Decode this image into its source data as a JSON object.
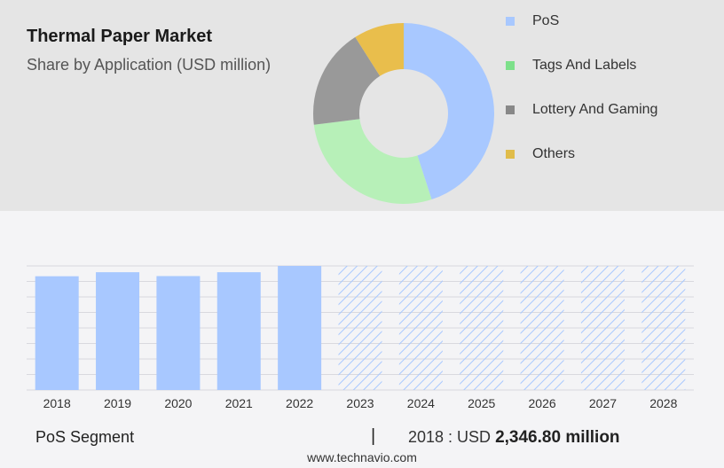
{
  "header": {
    "title": "Thermal Paper Market",
    "subtitle": "Share by Application (USD million)"
  },
  "colors": {
    "pos": "#a8c8ff",
    "tags": "#b7f0b8",
    "lottery": "#999999",
    "others": "#e9be4c",
    "forecast_hatch": "#a8c8ff"
  },
  "legend_colors": {
    "pos": "#a8c8ff",
    "tags": "#7de08a",
    "lottery": "#888888",
    "others": "#e0bc4a"
  },
  "chart_data": [
    {
      "type": "pie",
      "variant": "donut",
      "legend_position": "right",
      "slices": [
        {
          "name": "PoS",
          "value": 45
        },
        {
          "name": "Tags And Labels",
          "value": 28
        },
        {
          "name": "Lottery And Gaming",
          "value": 18
        },
        {
          "name": "Others",
          "value": 9
        }
      ]
    },
    {
      "type": "bar",
      "categories": [
        "2018",
        "2019",
        "2020",
        "2021",
        "2022",
        "2023",
        "2024",
        "2025",
        "2026",
        "2027",
        "2028"
      ],
      "values": [
        2346.8,
        2430,
        2350,
        2430,
        2560,
        null,
        null,
        null,
        null,
        null,
        null
      ],
      "forecast_from": "2023",
      "grid": true
    }
  ],
  "footer": {
    "segment_label": "PoS Segment",
    "separator": "|",
    "year_prefix": "2018 : USD",
    "value_text": "2,346.80 million"
  },
  "source": "www.technavio.com"
}
